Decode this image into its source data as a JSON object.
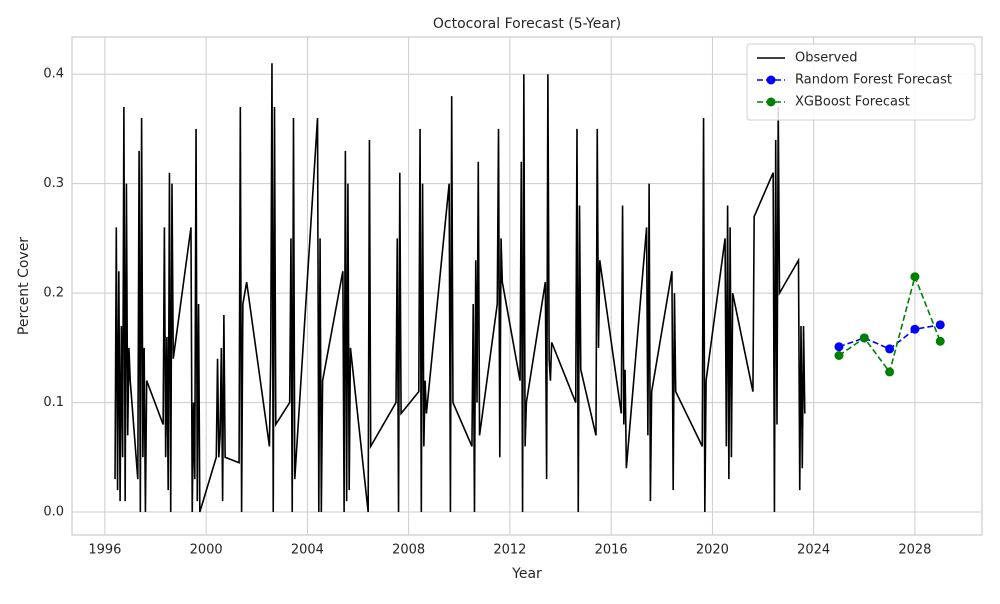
{
  "chart_data": {
    "type": "line",
    "title": "Octocoral Forecast (5-Year)",
    "x_label": "Year",
    "y_label": "Percent Cover",
    "xlim": [
      1994.7,
      2030.65
    ],
    "ylim": [
      -0.021,
      0.434
    ],
    "xticks": [
      1996,
      2000,
      2004,
      2008,
      2012,
      2016,
      2020,
      2024,
      2028
    ],
    "yticks": [
      {
        "value": 0,
        "label": "0.0"
      },
      {
        "value": 0.1,
        "label": "0.1"
      },
      {
        "value": 0.2,
        "label": "0.2"
      },
      {
        "value": 0.3,
        "label": "0.3"
      },
      {
        "value": 0.4,
        "label": "0.4"
      }
    ],
    "grid": true,
    "legend": "upper right",
    "series": [
      {
        "name": "Observed",
        "color": "#000000",
        "dashed": false,
        "markers": false,
        "x": [
          1996.4,
          1996.45,
          1996.5,
          1996.55,
          1996.6,
          1996.65,
          1996.7,
          1996.75,
          1996.8,
          1996.85,
          1996.9,
          1996.95,
          1997.0,
          1997.3,
          1997.35,
          1997.4,
          1997.45,
          1997.5,
          1997.55,
          1997.6,
          1997.65,
          1998.3,
          1998.35,
          1998.4,
          1998.45,
          1998.5,
          1998.55,
          1998.6,
          1998.65,
          1998.7,
          1999.4,
          1999.45,
          1999.5,
          1999.55,
          1999.6,
          1999.65,
          1999.7,
          1999.75,
          2000.4,
          2000.45,
          2000.5,
          2000.55,
          2000.6,
          2000.65,
          2000.7,
          2000.75,
          2001.3,
          2001.35,
          2001.4,
          2001.45,
          2001.6,
          2002.5,
          2002.55,
          2002.6,
          2002.65,
          2002.7,
          2002.75,
          2003.3,
          2003.35,
          2003.4,
          2003.45,
          2003.5,
          2004.4,
          2004.45,
          2004.5,
          2004.55,
          2004.6,
          2005.4,
          2005.45,
          2005.5,
          2005.55,
          2005.6,
          2005.65,
          2005.7,
          2006.4,
          2006.45,
          2006.5,
          2007.5,
          2007.55,
          2007.6,
          2007.65,
          2007.7,
          2008.4,
          2008.45,
          2008.5,
          2008.55,
          2008.6,
          2008.65,
          2008.7,
          2009.6,
          2009.65,
          2009.7,
          2009.75,
          2010.5,
          2010.55,
          2010.6,
          2010.65,
          2010.7,
          2010.75,
          2010.8,
          2011.5,
          2011.55,
          2011.6,
          2011.65,
          2011.7,
          2012.4,
          2012.45,
          2012.5,
          2012.55,
          2012.6,
          2012.65,
          2013.4,
          2013.45,
          2013.5,
          2013.55,
          2013.6,
          2013.65,
          2014.6,
          2014.65,
          2014.7,
          2014.75,
          2014.8,
          2015.4,
          2015.45,
          2015.5,
          2015.55,
          2016.4,
          2016.45,
          2016.5,
          2016.55,
          2016.6,
          2017.4,
          2017.45,
          2017.5,
          2017.55,
          2017.6,
          2018.4,
          2018.45,
          2018.5,
          2018.55,
          2019.6,
          2019.65,
          2019.7,
          2019.75,
          2020.5,
          2020.55,
          2020.6,
          2020.65,
          2020.7,
          2020.75,
          2020.8,
          2021.6,
          2021.65,
          2022.4,
          2022.45,
          2022.5,
          2022.55,
          2022.6,
          2022.65,
          2023.4,
          2023.45,
          2023.5,
          2023.55,
          2023.6,
          2023.65
        ],
        "values": [
          0.03,
          0.26,
          0.02,
          0.22,
          0.01,
          0.17,
          0.05,
          0.37,
          0.01,
          0.3,
          0.07,
          0.15,
          0.12,
          0.03,
          0.33,
          0.0,
          0.36,
          0.05,
          0.15,
          0.0,
          0.12,
          0.08,
          0.26,
          0.05,
          0.16,
          0.02,
          0.31,
          0.0,
          0.3,
          0.14,
          0.26,
          0.0,
          0.1,
          0.03,
          0.35,
          0.01,
          0.19,
          0.0,
          0.05,
          0.14,
          0.05,
          0.07,
          0.15,
          0.01,
          0.18,
          0.05,
          0.045,
          0.37,
          0.0,
          0.19,
          0.21,
          0.06,
          0.14,
          0.41,
          0.0,
          0.37,
          0.08,
          0.1,
          0.25,
          0.0,
          0.36,
          0.03,
          0.36,
          0.0,
          0.25,
          0.0,
          0.12,
          0.22,
          0.0,
          0.33,
          0.01,
          0.3,
          0.02,
          0.15,
          0.0,
          0.34,
          0.06,
          0.1,
          0.25,
          0.0,
          0.31,
          0.09,
          0.11,
          0.35,
          0.0,
          0.3,
          0.06,
          0.12,
          0.09,
          0.3,
          0.0,
          0.38,
          0.1,
          0.06,
          0.19,
          0.0,
          0.23,
          0.1,
          0.32,
          0.07,
          0.19,
          0.35,
          0.05,
          0.25,
          0.21,
          0.12,
          0.32,
          0.0,
          0.4,
          0.06,
          0.1,
          0.21,
          0.03,
          0.4,
          0.14,
          0.12,
          0.155,
          0.1,
          0.35,
          0.0,
          0.28,
          0.13,
          0.07,
          0.35,
          0.15,
          0.23,
          0.09,
          0.28,
          0.08,
          0.13,
          0.04,
          0.26,
          0.07,
          0.3,
          0.01,
          0.11,
          0.22,
          0.02,
          0.2,
          0.11,
          0.06,
          0.36,
          0.0,
          0.12,
          0.25,
          0.06,
          0.28,
          0.03,
          0.26,
          0.05,
          0.2,
          0.11,
          0.27,
          0.31,
          0.0,
          0.34,
          0.08,
          0.37,
          0.2,
          0.23,
          0.02,
          0.17,
          0.04,
          0.17,
          0.09
        ]
      },
      {
        "name": "Random Forest Forecast",
        "color": "#0000ff",
        "dashed": true,
        "markers": true,
        "x": [
          2025,
          2026,
          2027,
          2028,
          2029
        ],
        "values": [
          0.151,
          0.159,
          0.149,
          0.167,
          0.171
        ]
      },
      {
        "name": "XGBoost Forecast",
        "color": "#008000",
        "dashed": true,
        "markers": true,
        "x": [
          2025,
          2026,
          2027,
          2028,
          2029
        ],
        "values": [
          0.143,
          0.159,
          0.128,
          0.215,
          0.156
        ]
      }
    ]
  }
}
